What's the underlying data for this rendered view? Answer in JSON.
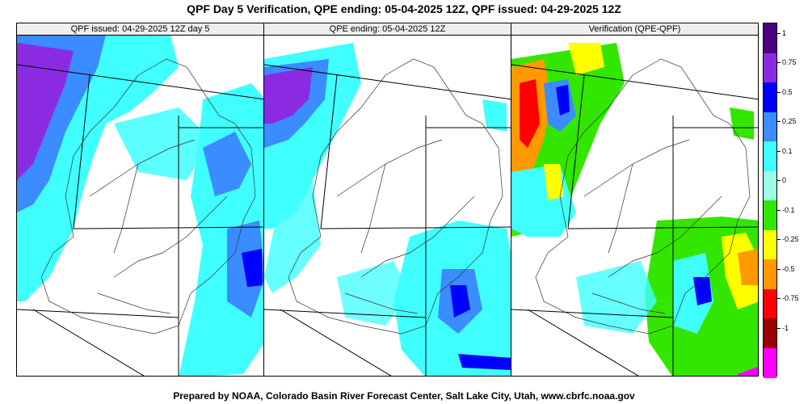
{
  "title": "QPF Day 5 Verification, QPE ending: 05-04-2025 12Z, QPF issued: 04-29-2025 12Z",
  "footer": "Prepared by NOAA, Colorado Basin River Forecast Center, Salt Lake City, Utah, www.cbrfc.noaa.gov",
  "panels": [
    {
      "label": "QPF issued: 04-29-2025 12Z day 5"
    },
    {
      "label": "QPE ending: 05-04-2025 12Z"
    },
    {
      "label": "Verification (QPE-QPF)"
    }
  ],
  "colorbar": {
    "levels": [
      {
        "label": "1",
        "color": "#4b0082"
      },
      {
        "label": "0.75",
        "color": "#8a2be2"
      },
      {
        "label": "0.5",
        "color": "#0000ff"
      },
      {
        "label": "0.25",
        "color": "#3a8cff"
      },
      {
        "label": "0.1",
        "color": "#40ffff"
      },
      {
        "label": "0",
        "color": "#9cfce8"
      },
      {
        "label": "-0.1",
        "color": "#33e600"
      },
      {
        "label": "-0.25",
        "color": "#ffff00"
      },
      {
        "label": "-0.5",
        "color": "#ff9900"
      },
      {
        "label": "-0.75",
        "color": "#ff0000"
      },
      {
        "label": "-1",
        "color": "#990000"
      },
      {
        "label": "",
        "color": "#ff00ff"
      }
    ]
  },
  "colors": {
    "light_precip": "#40ffff",
    "moderate_precip": "#3a8cff",
    "heavy_precip": "#0000ff",
    "very_heavy_precip": "#8a2be2",
    "verif_green": "#33e600",
    "verif_yellow": "#ffff00",
    "verif_orange": "#ff9900",
    "verif_red": "#ff0000"
  }
}
